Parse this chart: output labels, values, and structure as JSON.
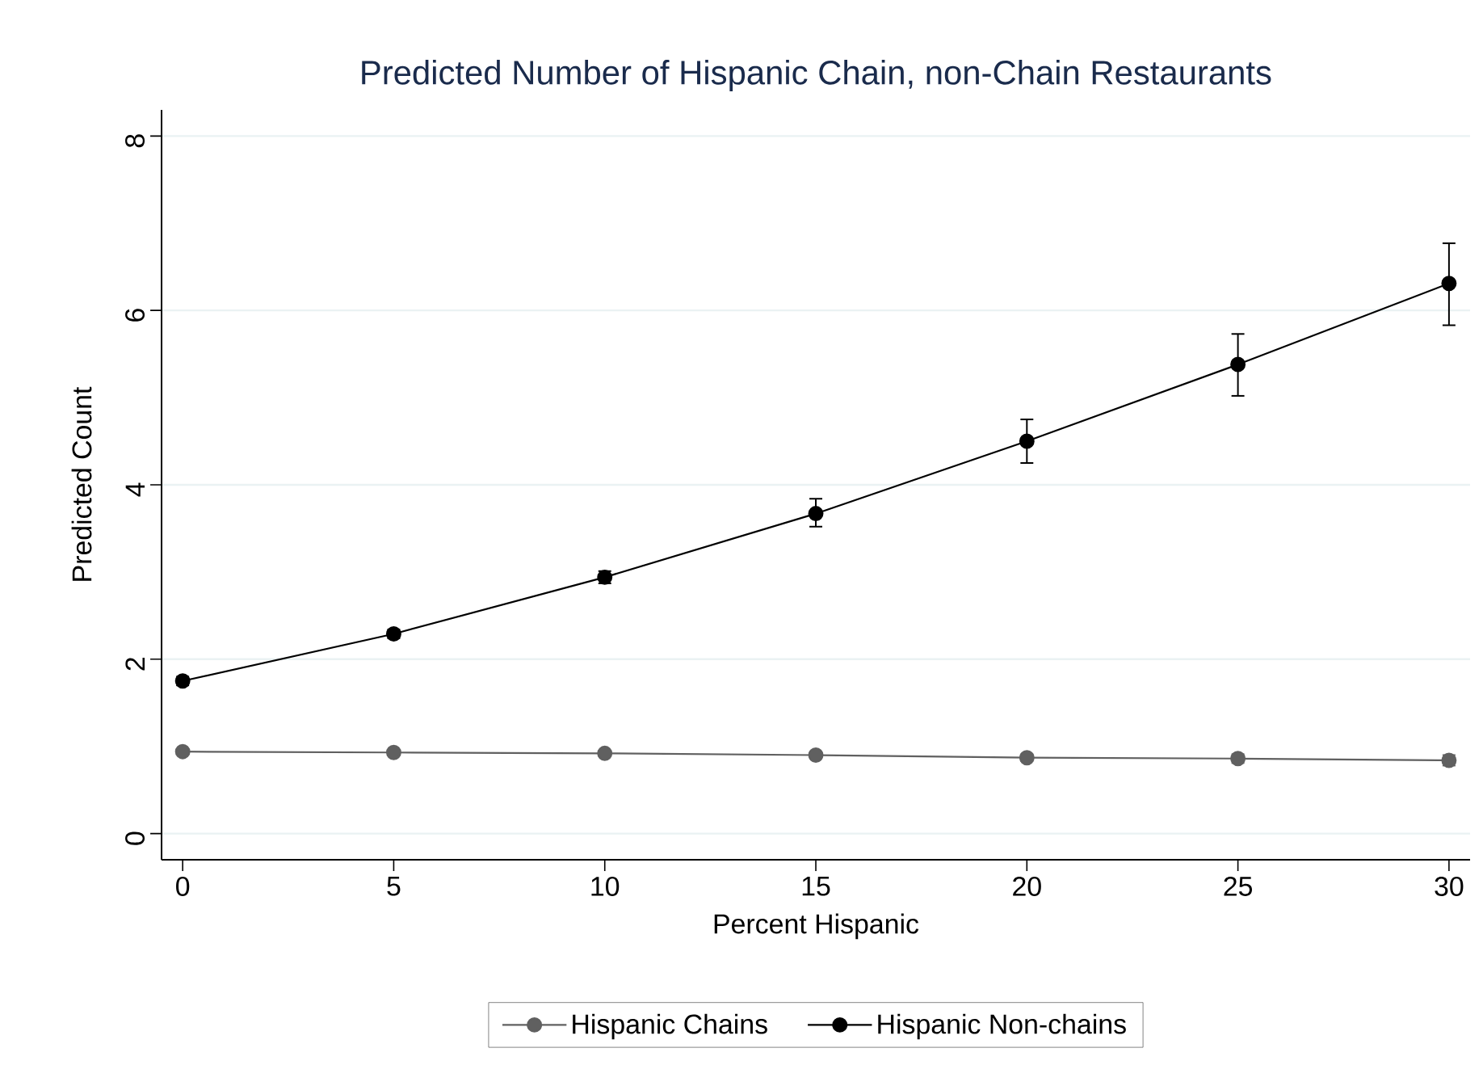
{
  "chart_data": {
    "type": "line",
    "title": "Predicted Number of Hispanic Chain, non-Chain Restaurants",
    "xlabel": "Percent Hispanic",
    "ylabel": "Predicted Count",
    "x": [
      0,
      5,
      10,
      15,
      20,
      25,
      30
    ],
    "series": [
      {
        "name": "Hispanic Chains",
        "color": "#606060",
        "values": [
          0.94,
          0.93,
          0.92,
          0.9,
          0.87,
          0.86,
          0.84
        ],
        "errors": [
          0.03,
          0.03,
          0.03,
          0.04,
          0.04,
          0.05,
          0.06
        ]
      },
      {
        "name": "Hispanic Non-chains",
        "color": "#000000",
        "values": [
          1.75,
          2.29,
          2.94,
          3.67,
          4.5,
          5.38,
          6.31
        ],
        "errors": [
          0.05,
          0.05,
          0.07,
          [
            3.52,
            3.84
          ],
          [
            4.25,
            4.75
          ],
          [
            5.02,
            5.73
          ],
          [
            5.83,
            6.77
          ]
        ]
      }
    ],
    "xlim": [
      -0.5,
      30.5
    ],
    "ylim": [
      -0.3,
      8.3
    ],
    "xticks": [
      0,
      5,
      10,
      15,
      20,
      25,
      30
    ],
    "yticks": [
      0,
      2,
      4,
      6,
      8
    ],
    "grid": "y",
    "legend": "bottom",
    "marker": "circle",
    "line_style": "solid"
  }
}
